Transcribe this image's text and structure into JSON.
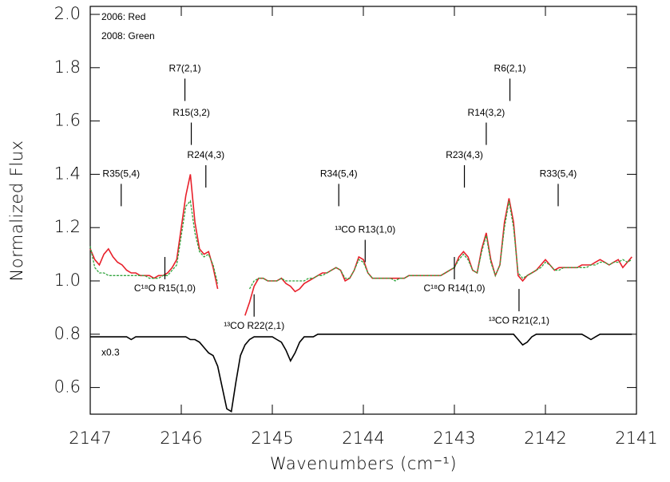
{
  "chart_data": {
    "type": "line",
    "xlabel": "Wavenumbers (cm⁻¹)",
    "ylabel": "Normalized Flux",
    "xlim": [
      2147,
      2141
    ],
    "ylim": [
      0.5,
      2.03
    ],
    "xticks": [
      2147,
      2146,
      2145,
      2144,
      2143,
      2142,
      2141
    ],
    "yticks": [
      0.6,
      0.8,
      {
        "value": 1.0,
        "label": "1.0"
      },
      1.2,
      1.4,
      1.6,
      1.8,
      {
        "value": 2.0,
        "label": "2.0"
      }
    ],
    "x": [
      2147.0,
      2146.95,
      2146.9,
      2146.85,
      2146.8,
      2146.75,
      2146.7,
      2146.65,
      2146.6,
      2146.55,
      2146.5,
      2146.45,
      2146.4,
      2146.35,
      2146.3,
      2146.25,
      2146.2,
      2146.15,
      2146.1,
      2146.05,
      2146.0,
      2145.95,
      2145.9,
      2145.85,
      2145.8,
      2145.75,
      2145.7,
      2145.65,
      2145.6,
      2145.55,
      2145.5,
      2145.45,
      2145.4,
      2145.35,
      2145.3,
      2145.25,
      2145.2,
      2145.15,
      2145.1,
      2145.05,
      2145.0,
      2144.95,
      2144.9,
      2144.85,
      2144.8,
      2144.75,
      2144.7,
      2144.65,
      2144.6,
      2144.55,
      2144.5,
      2144.45,
      2144.4,
      2144.35,
      2144.3,
      2144.25,
      2144.2,
      2144.15,
      2144.1,
      2144.05,
      2144.0,
      2143.95,
      2143.9,
      2143.85,
      2143.8,
      2143.75,
      2143.7,
      2143.65,
      2143.6,
      2143.55,
      2143.5,
      2143.45,
      2143.4,
      2143.35,
      2143.3,
      2143.25,
      2143.2,
      2143.15,
      2143.1,
      2143.05,
      2143.0,
      2142.95,
      2142.9,
      2142.85,
      2142.8,
      2142.75,
      2142.7,
      2142.65,
      2142.6,
      2142.55,
      2142.5,
      2142.45,
      2142.4,
      2142.35,
      2142.3,
      2142.25,
      2142.2,
      2142.15,
      2142.1,
      2142.05,
      2142.0,
      2141.95,
      2141.9,
      2141.85,
      2141.8,
      2141.75,
      2141.7,
      2141.65,
      2141.6,
      2141.55,
      2141.5,
      2141.45,
      2141.4,
      2141.35,
      2141.3,
      2141.25,
      2141.2,
      2141.15,
      2141.1,
      2141.05
    ],
    "series": [
      {
        "name": "2006: Red",
        "color": "#e8202a",
        "values": [
          1.12,
          1.08,
          1.06,
          1.1,
          1.12,
          1.09,
          1.07,
          1.06,
          1.04,
          1.03,
          1.03,
          1.02,
          1.02,
          1.02,
          1.01,
          1.02,
          1.02,
          1.03,
          1.05,
          1.08,
          1.2,
          1.32,
          1.4,
          1.22,
          1.12,
          1.1,
          1.11,
          1.05,
          0.97,
          null,
          null,
          null,
          null,
          null,
          0.87,
          0.92,
          0.98,
          1.01,
          1.01,
          1.0,
          1.0,
          1.0,
          1.01,
          0.99,
          0.98,
          0.96,
          0.97,
          0.99,
          1.0,
          1.01,
          1.02,
          1.03,
          1.03,
          1.04,
          1.05,
          1.04,
          1.0,
          1.01,
          1.04,
          1.09,
          1.08,
          1.03,
          1.01,
          1.01,
          1.01,
          1.01,
          1.01,
          1.01,
          1.01,
          1.01,
          1.02,
          1.02,
          1.02,
          1.02,
          1.02,
          1.02,
          1.02,
          1.02,
          1.03,
          1.04,
          1.05,
          1.09,
          1.11,
          1.09,
          1.04,
          1.03,
          1.12,
          1.18,
          1.08,
          1.02,
          1.06,
          1.22,
          1.31,
          1.22,
          1.02,
          1.0,
          1.02,
          1.03,
          1.04,
          1.06,
          1.08,
          1.06,
          1.04,
          1.05,
          1.05,
          1.05,
          1.05,
          1.05,
          1.06,
          1.06,
          1.06,
          1.07,
          1.08,
          1.07,
          1.06,
          1.07,
          1.08,
          1.05,
          1.07,
          1.09
        ]
      },
      {
        "name": "2008: Green",
        "color": "#33a53f",
        "values": [
          1.13,
          1.05,
          1.03,
          1.03,
          1.02,
          1.02,
          1.02,
          1.02,
          1.02,
          1.02,
          1.02,
          1.02,
          1.02,
          1.01,
          1.01,
          1.01,
          1.02,
          1.02,
          1.04,
          1.06,
          1.17,
          1.28,
          1.3,
          1.18,
          1.11,
          1.09,
          1.1,
          1.06,
          0.99,
          null,
          null,
          null,
          null,
          null,
          null,
          0.97,
          1.0,
          1.01,
          1.01,
          1.0,
          1.0,
          1.0,
          1.01,
          1.0,
          1.0,
          1.0,
          1.0,
          1.0,
          1.01,
          1.01,
          1.02,
          1.02,
          1.03,
          1.04,
          1.05,
          1.04,
          1.01,
          1.01,
          1.04,
          1.08,
          1.07,
          1.03,
          1.01,
          1.01,
          1.01,
          1.01,
          1.01,
          1.0,
          1.01,
          1.01,
          1.02,
          1.02,
          1.02,
          1.02,
          1.02,
          1.02,
          1.02,
          1.02,
          1.03,
          1.04,
          1.05,
          1.08,
          1.1,
          1.08,
          1.04,
          1.03,
          1.11,
          1.17,
          1.07,
          1.02,
          1.06,
          1.2,
          1.3,
          1.2,
          1.03,
          1.01,
          1.02,
          1.03,
          1.04,
          1.05,
          1.07,
          1.06,
          1.04,
          1.04,
          1.05,
          1.05,
          1.05,
          1.05,
          1.05,
          1.05,
          1.06,
          1.06,
          1.07,
          1.07,
          1.06,
          1.07,
          1.07,
          1.08,
          1.07,
          1.08
        ]
      },
      {
        "name": "x0.3",
        "color": "#000000",
        "values": [
          0.79,
          0.79,
          0.79,
          0.79,
          0.79,
          0.79,
          0.79,
          0.79,
          0.79,
          0.78,
          0.79,
          0.79,
          0.79,
          0.79,
          0.79,
          0.79,
          0.79,
          0.79,
          0.79,
          0.79,
          0.79,
          0.79,
          0.78,
          0.78,
          0.77,
          0.75,
          0.73,
          0.72,
          0.68,
          0.6,
          0.52,
          0.51,
          0.62,
          0.72,
          0.76,
          0.78,
          0.79,
          0.79,
          0.79,
          0.79,
          0.79,
          0.78,
          0.77,
          0.74,
          0.7,
          0.73,
          0.77,
          0.79,
          0.79,
          0.79,
          0.8,
          0.8,
          0.8,
          0.8,
          0.8,
          0.8,
          0.8,
          0.8,
          0.8,
          0.8,
          0.8,
          0.8,
          0.8,
          0.8,
          0.8,
          0.8,
          0.8,
          0.8,
          0.8,
          0.8,
          0.8,
          0.8,
          0.8,
          0.8,
          0.8,
          0.8,
          0.8,
          0.8,
          0.8,
          0.8,
          0.8,
          0.8,
          0.8,
          0.8,
          0.8,
          0.8,
          0.8,
          0.8,
          0.8,
          0.8,
          0.8,
          0.8,
          0.8,
          0.8,
          0.78,
          0.76,
          0.77,
          0.79,
          0.8,
          0.8,
          0.8,
          0.8,
          0.8,
          0.8,
          0.8,
          0.8,
          0.8,
          0.8,
          0.8,
          0.79,
          0.78,
          0.79,
          0.8,
          0.8,
          0.8,
          0.8,
          0.8,
          0.8,
          0.8,
          0.8
        ]
      }
    ],
    "annotations": [
      {
        "text": "R35(5,4)",
        "x": 2146.66,
        "y": 1.4,
        "position": "above"
      },
      {
        "text": "R7(2,1)",
        "x": 2145.96,
        "y": 1.795,
        "position": "above"
      },
      {
        "text": "R15(3,2)",
        "x": 2145.89,
        "y": 1.63,
        "position": "above"
      },
      {
        "text": "R24(4,3)",
        "x": 2145.73,
        "y": 1.47,
        "position": "above"
      },
      {
        "text": "R34(5,4)",
        "x": 2144.27,
        "y": 1.4,
        "position": "above"
      },
      {
        "text": "¹³CO R13(1,0)",
        "x": 2143.98,
        "y": 1.19,
        "position": "above"
      },
      {
        "text": "R23(4,3)",
        "x": 2142.89,
        "y": 1.47,
        "position": "above"
      },
      {
        "text": "R14(3,2)",
        "x": 2142.65,
        "y": 1.63,
        "position": "above"
      },
      {
        "text": "R6(2,1)",
        "x": 2142.39,
        "y": 1.795,
        "position": "above"
      },
      {
        "text": "R33(5,4)",
        "x": 2141.86,
        "y": 1.4,
        "position": "above"
      },
      {
        "text": "C¹⁸O R15(1,0)",
        "x": 2146.18,
        "y": 0.97,
        "position": "below"
      },
      {
        "text": "¹³CO R22(2,1)",
        "x": 2145.2,
        "y": 0.83,
        "position": "below"
      },
      {
        "text": "C¹⁸O R14(1,0)",
        "x": 2143.0,
        "y": 0.97,
        "position": "below"
      },
      {
        "text": "¹³CO R21(2,1)",
        "x": 2142.29,
        "y": 0.85,
        "position": "below"
      }
    ]
  }
}
